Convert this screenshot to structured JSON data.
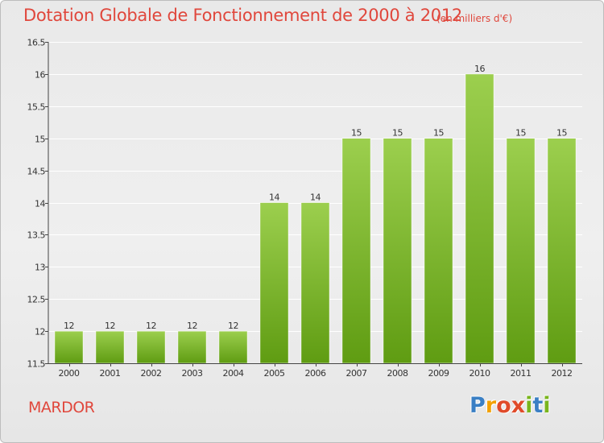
{
  "chart_data": {
    "type": "bar",
    "title": "Dotation Globale de Fonctionnement de 2000 à 2012",
    "subtitle": "(en milliers d'€)",
    "categories": [
      "2000",
      "2001",
      "2002",
      "2003",
      "2004",
      "2005",
      "2006",
      "2007",
      "2008",
      "2009",
      "2010",
      "2011",
      "2012"
    ],
    "values": [
      12,
      12,
      12,
      12,
      12,
      14,
      14,
      15,
      15,
      15,
      16,
      15,
      15
    ],
    "value_labels": [
      "12",
      "12",
      "12",
      "12",
      "12",
      "14",
      "14",
      "15",
      "15",
      "15",
      "16",
      "15",
      "15"
    ],
    "ylim": [
      11.5,
      16.5
    ],
    "yticks": [
      11.5,
      12,
      12.5,
      13,
      13.5,
      14,
      14.5,
      15,
      15.5,
      16,
      16.5
    ],
    "ytick_labels": [
      "11.5",
      "12",
      "12.5",
      "13",
      "13.5",
      "14",
      "14.5",
      "15",
      "15.5",
      "16",
      "16.5"
    ],
    "xlabel": "",
    "ylabel": "",
    "grid": true,
    "bar_color_top": "#9ccf4e",
    "bar_color_bottom": "#5f9c12"
  },
  "footer": {
    "place_name": "MARDOR",
    "logo_letters": [
      "P",
      "r",
      "o",
      "x",
      "i",
      "t",
      "i"
    ]
  }
}
